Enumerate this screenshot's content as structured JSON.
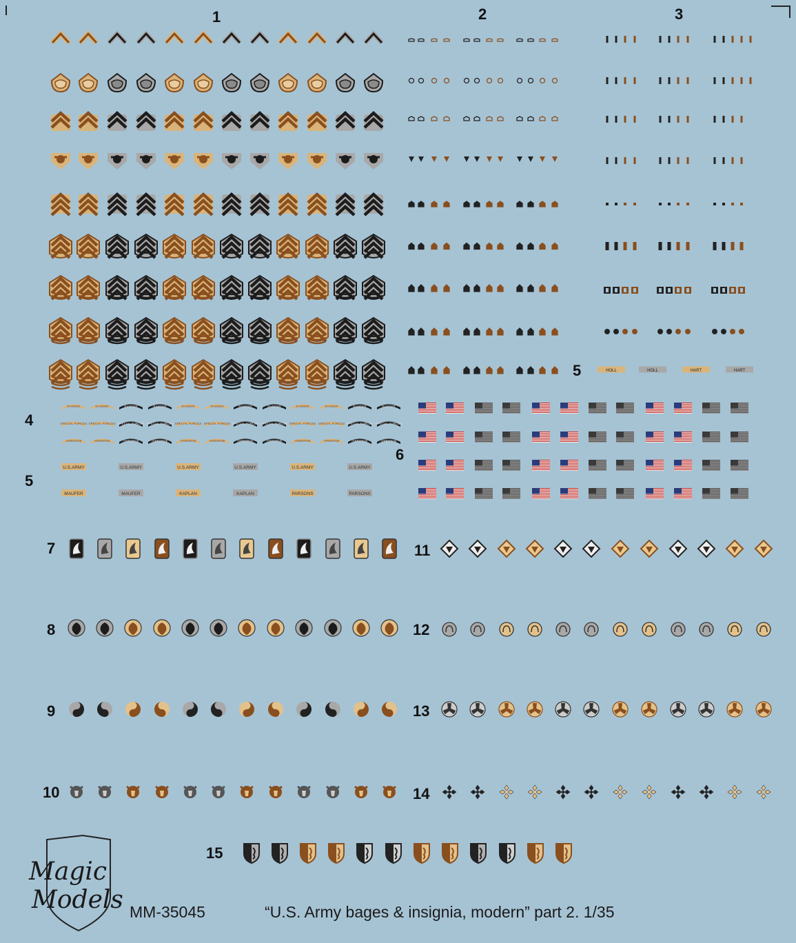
{
  "section_numbers": {
    "s1": "1",
    "s2": "2",
    "s3": "3",
    "s4": "4",
    "s5a": "5",
    "s5b": "5",
    "s6": "6",
    "s7": "7",
    "s8": "8",
    "s9": "9",
    "s10": "10",
    "s11": "11",
    "s12": "12",
    "s13": "13",
    "s14": "14",
    "s15": "15"
  },
  "tabs": {
    "arcs": [
      "RANGER",
      "SPECIAL FORCES",
      "AIRBORNE"
    ],
    "usarmy": "U.S.ARMY",
    "names": [
      "MAUFER",
      "MAUFER",
      "KAPLAN",
      "KAPLAN",
      "PARSONS",
      "PARSONS"
    ],
    "small_names": [
      "HOLL",
      "HOLL",
      "HART",
      "HART"
    ]
  },
  "logo": {
    "line1": "Magic",
    "line2": "Models"
  },
  "footer": {
    "code": "MM-35045",
    "title": "“U.S. Army bages & insignia, modern” part 2. 1/35"
  },
  "colors": {
    "background": "#a6c3d4",
    "tan": "#d9b47a",
    "brown": "#8a4f1e",
    "black": "#1c1c1c",
    "grey": "#a8a8a8",
    "flag_red": "#c8302b",
    "flag_blue": "#2a3c7a"
  },
  "icons": {
    "rank": "rank-chevron-icon",
    "flag": "us-flag-icon",
    "patch7": "winged-shield-patch-icon",
    "patch8": "leaf-disc-patch-icon",
    "patch9": "yin-yang-patch-icon",
    "patch10": "bull-head-patch-icon",
    "patch11": "diamond-patch-icon",
    "patch12": "ring-patch-icon",
    "patch13": "trefoil-patch-icon",
    "patch14": "ivy-cross-patch-icon",
    "patch15": "shield-patch-icon"
  }
}
